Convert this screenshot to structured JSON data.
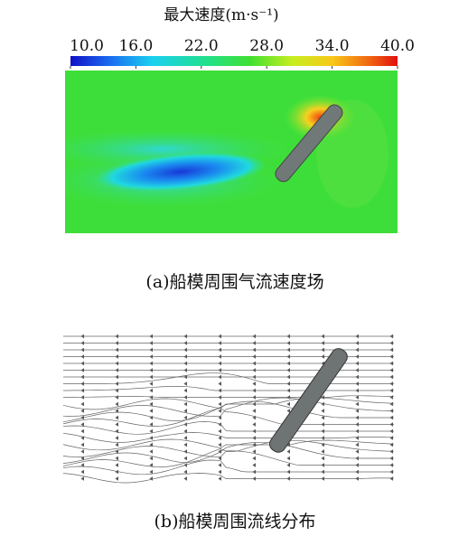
{
  "figure_a": {
    "colorbar": {
      "title": "最大速度(m·s⁻¹)",
      "lim": [
        10,
        40
      ],
      "ticks": [
        {
          "value": 10,
          "label": "10.0"
        },
        {
          "value": 16,
          "label": "16.0"
        },
        {
          "value": 22,
          "label": "22.0"
        },
        {
          "value": 28,
          "label": "28.0"
        },
        {
          "value": 34,
          "label": "34.0"
        },
        {
          "value": 40,
          "label": "40.0"
        }
      ]
    },
    "caption": "(a)船模周围气流速度场"
  },
  "figure_b": {
    "caption": "(b)船模周围流线分布"
  }
}
